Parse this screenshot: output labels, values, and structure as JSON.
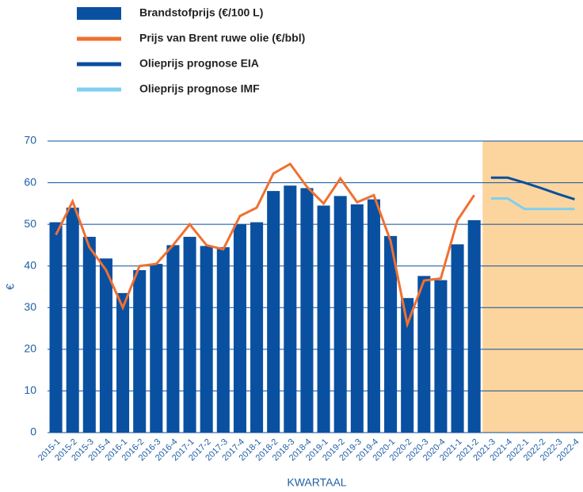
{
  "chart_data": {
    "type": "bar",
    "x_label": "KWARTAAL",
    "y_label": "€",
    "categories": [
      "2015-1",
      "2015-2",
      "2015-3",
      "2015-4",
      "2016-1",
      "2016-2",
      "2016-3",
      "2016-4",
      "2017-1",
      "2017-2",
      "2017-3",
      "2017-4",
      "2018-1",
      "2018-2",
      "2018-3",
      "2018-4",
      "2019-1",
      "2019-2",
      "2019-3",
      "2019-4",
      "2020-1",
      "2020-2",
      "2020-3",
      "2020-4",
      "2021-1",
      "2021-2",
      "2021-3",
      "2021-4",
      "2022-1",
      "2022-2",
      "2022-3",
      "2022-4"
    ],
    "series": [
      {
        "name": "Brandstofprijs (€/100 L)",
        "kind": "bar",
        "color": "#0a50a1",
        "values": [
          50.5,
          54,
          47,
          41.8,
          33.5,
          39,
          40.5,
          45,
          47,
          44.8,
          44.5,
          50,
          50.5,
          58,
          59.3,
          58.7,
          54.5,
          56.8,
          54.8,
          56,
          47.2,
          32.3,
          37.6,
          36.6,
          45.2,
          51,
          null,
          null,
          null,
          null,
          null,
          null
        ]
      },
      {
        "name": "Prijs van Brent ruwe olie (€/bbl)",
        "kind": "line",
        "color": "#f07030",
        "values": [
          47.5,
          55.5,
          44.5,
          39,
          30,
          40,
          40.5,
          45,
          50,
          45,
          44,
          52,
          54,
          62.2,
          64.5,
          59,
          55,
          61,
          55.3,
          57,
          46,
          26,
          36.5,
          37,
          51,
          57,
          null,
          null,
          null,
          null,
          null,
          null
        ]
      },
      {
        "name": "Olieprijs prognose EIA",
        "kind": "line",
        "color": "#0a4f9f",
        "values": [
          null,
          null,
          null,
          null,
          null,
          null,
          null,
          null,
          null,
          null,
          null,
          null,
          null,
          null,
          null,
          null,
          null,
          null,
          null,
          null,
          null,
          null,
          null,
          null,
          null,
          null,
          61.2,
          61.2,
          60,
          58.7,
          57.3,
          56
        ]
      },
      {
        "name": "Olieprijs prognose IMF",
        "kind": "line",
        "color": "#7fcff0",
        "values": [
          null,
          null,
          null,
          null,
          null,
          null,
          null,
          null,
          null,
          null,
          null,
          null,
          null,
          null,
          null,
          null,
          null,
          null,
          null,
          null,
          null,
          null,
          null,
          null,
          null,
          null,
          56.2,
          56.2,
          53.7,
          53.7,
          53.7,
          53.7
        ]
      }
    ],
    "ylim": [
      0,
      70
    ],
    "yticks": [
      0,
      10,
      20,
      30,
      40,
      50,
      60,
      70
    ],
    "grid": true,
    "grid_color": "#0a4f9f",
    "shade_color": "#fcd59e",
    "legend": "top"
  }
}
